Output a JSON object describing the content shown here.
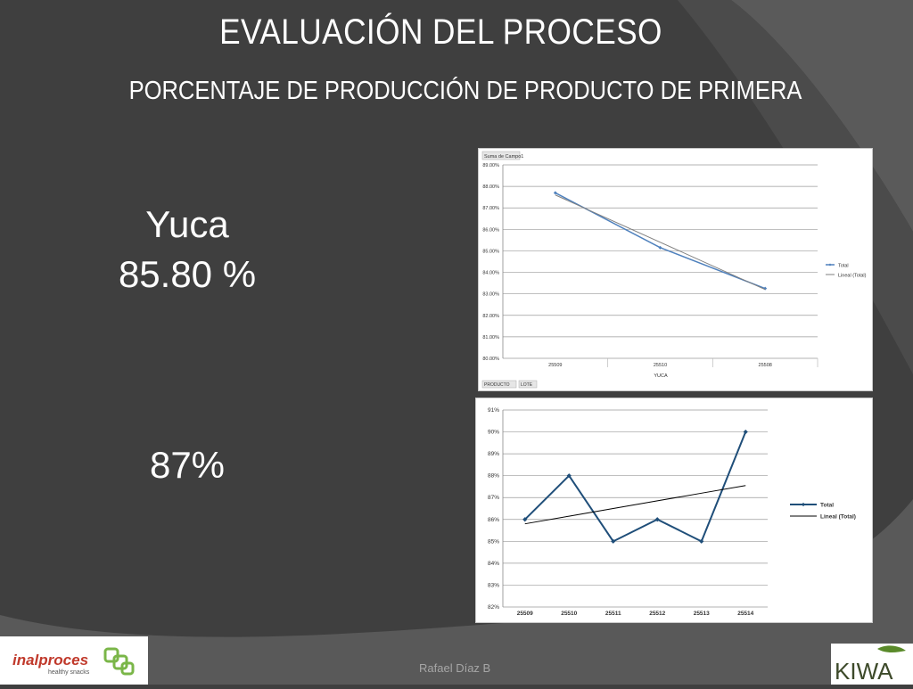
{
  "slide": {
    "title": "EVALUACIÓN DEL PROCESO",
    "subtitle": "PORCENTAJE DE PRODUCCIÓN DE PRODUCTO DE PRIMERA",
    "product_label": "Yuca",
    "product_value": "85.80 %",
    "second_value": "87%",
    "footer": "Rafael Díaz B",
    "logo_left": {
      "name": "inalproces",
      "tagline": "healthy snacks"
    },
    "logo_right": {
      "name": "KIWA"
    }
  },
  "chart_data": [
    {
      "type": "line",
      "field_button": "Suma de Campo1",
      "filter_buttons": [
        "PRODUCTO",
        "LOTE"
      ],
      "categories": [
        "25509",
        "25510",
        "25508"
      ],
      "xlabel": "YUCA",
      "ylim": [
        80,
        89
      ],
      "yticks": [
        "89.00%",
        "88.00%",
        "87.00%",
        "86.00%",
        "85.00%",
        "84.00%",
        "83.00%",
        "82.00%",
        "81.00%",
        "80.00%"
      ],
      "series": [
        {
          "name": "Total",
          "values": [
            87.7,
            85.15,
            83.25
          ],
          "color": "#4f81bd"
        },
        {
          "name": "Lineal (Total)",
          "values": [
            87.6,
            85.4,
            83.2
          ],
          "color": "#7f7f7f"
        }
      ],
      "legend": "right",
      "grid": true
    },
    {
      "type": "line",
      "categories": [
        "25509",
        "25510",
        "25511",
        "25512",
        "25513",
        "25514"
      ],
      "ylim": [
        82,
        91
      ],
      "yticks": [
        "91%",
        "90%",
        "89%",
        "88%",
        "87%",
        "86%",
        "85%",
        "84%",
        "83%",
        "82%"
      ],
      "series": [
        {
          "name": "Total",
          "values": [
            86,
            88,
            85,
            86,
            85,
            90
          ],
          "color": "#1f4e79"
        },
        {
          "name": "Lineal (Total)",
          "values": [
            85.8,
            86.15,
            86.5,
            86.85,
            87.2,
            87.55
          ],
          "color": "#000000"
        }
      ],
      "legend": "right",
      "grid": true
    }
  ]
}
